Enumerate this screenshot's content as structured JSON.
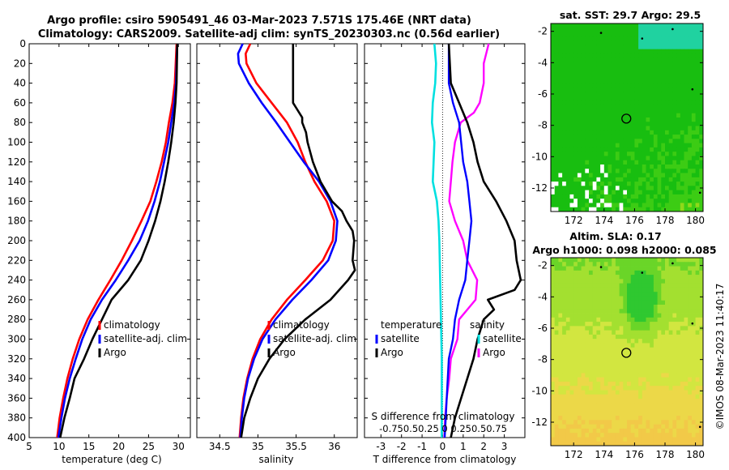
{
  "title_line1": "Argo profile: csiro 5905491_46 03-Mar-2023 7.571S 175.46E (NRT data)",
  "title_line2": "Climatology: CARS2009. Satellite-adj clim: synTS_20230303.nc (0.56d earlier)",
  "depth_ticks": [
    0,
    20,
    40,
    60,
    80,
    100,
    120,
    140,
    160,
    180,
    200,
    220,
    240,
    260,
    280,
    300,
    320,
    340,
    360,
    380,
    400
  ],
  "colors": {
    "climatology": "#ff0000",
    "satellite": "#0000ff",
    "argo": "#000000",
    "sal_satellite": "#00e0e0",
    "sal_argo": "#ff00ff"
  },
  "chart_data": [
    {
      "type": "line",
      "name": "temperature-profile",
      "xlabel": "temperature (deg C)",
      "xlim": [
        5,
        32
      ],
      "ylim": [
        400,
        0
      ],
      "x_ticks": [
        5,
        10,
        15,
        20,
        25,
        30
      ],
      "legend": [
        "climatology",
        "satellite-adj. clim",
        "Argo"
      ],
      "legend_position": "lower-middle",
      "series": [
        {
          "name": "climatology",
          "depth": [
            0,
            40,
            60,
            80,
            100,
            120,
            140,
            160,
            180,
            200,
            220,
            240,
            260,
            280,
            300,
            320,
            340,
            360,
            380,
            400
          ],
          "values": [
            29.7,
            29.4,
            29.0,
            28.4,
            27.9,
            27.2,
            26.3,
            25.3,
            23.8,
            22.2,
            20.5,
            18.6,
            16.6,
            14.8,
            13.4,
            12.3,
            11.4,
            10.7,
            10.1,
            9.7
          ]
        },
        {
          "name": "satellite-adj. clim",
          "depth": [
            0,
            40,
            60,
            80,
            100,
            120,
            140,
            160,
            180,
            200,
            220,
            240,
            260,
            280,
            300,
            320,
            340,
            360,
            380,
            400
          ],
          "values": [
            29.8,
            29.6,
            29.3,
            28.8,
            28.3,
            27.6,
            26.9,
            26.0,
            24.9,
            23.5,
            21.6,
            19.5,
            17.2,
            15.3,
            13.9,
            12.8,
            11.8,
            11.0,
            10.4,
            9.9
          ]
        },
        {
          "name": "Argo",
          "depth": [
            0,
            40,
            60,
            80,
            100,
            120,
            140,
            160,
            180,
            200,
            220,
            240,
            260,
            280,
            300,
            320,
            340,
            360,
            380,
            400
          ],
          "values": [
            29.8,
            29.7,
            29.5,
            29.2,
            28.8,
            28.3,
            27.7,
            27.0,
            26.1,
            25.0,
            23.7,
            21.6,
            18.8,
            17.2,
            15.6,
            14.2,
            12.6,
            11.8,
            10.9,
            10.2
          ]
        }
      ]
    },
    {
      "type": "line",
      "name": "salinity-profile",
      "xlabel": "salinity",
      "xlim": [
        34.2,
        36.3
      ],
      "ylim": [
        400,
        0
      ],
      "x_ticks": [
        34.5,
        35,
        35.5,
        36
      ],
      "legend": [
        "climatology",
        "satellite-adj. clim",
        "Argo"
      ],
      "legend_position": "lower-middle",
      "series": [
        {
          "name": "climatology",
          "depth": [
            0,
            10,
            20,
            40,
            60,
            80,
            100,
            120,
            140,
            160,
            180,
            200,
            220,
            240,
            260,
            280,
            300,
            320,
            340,
            360,
            380,
            400
          ],
          "values": [
            34.9,
            34.84,
            34.85,
            34.98,
            35.18,
            35.38,
            35.52,
            35.62,
            35.74,
            35.9,
            36.0,
            35.98,
            35.85,
            35.62,
            35.38,
            35.18,
            35.03,
            34.93,
            34.86,
            34.81,
            34.78,
            34.76
          ]
        },
        {
          "name": "satellite-adj. clim",
          "depth": [
            0,
            10,
            20,
            40,
            60,
            80,
            100,
            120,
            140,
            160,
            180,
            200,
            220,
            240,
            260,
            280,
            300,
            320,
            340,
            360,
            380,
            400
          ],
          "values": [
            34.8,
            34.74,
            34.75,
            34.88,
            35.05,
            35.24,
            35.42,
            35.6,
            35.8,
            35.95,
            36.04,
            36.02,
            35.92,
            35.7,
            35.45,
            35.23,
            35.06,
            34.95,
            34.87,
            34.82,
            34.79,
            34.77
          ]
        },
        {
          "name": "Argo",
          "depth": [
            0,
            40,
            60,
            65,
            75,
            80,
            90,
            100,
            120,
            140,
            160,
            170,
            180,
            190,
            200,
            220,
            230,
            240,
            260,
            280,
            300,
            320,
            340,
            360,
            380,
            400
          ],
          "values": [
            35.46,
            35.46,
            35.46,
            35.5,
            35.58,
            35.58,
            35.63,
            35.65,
            35.72,
            35.82,
            35.97,
            36.1,
            36.16,
            36.24,
            36.26,
            36.24,
            36.27,
            36.18,
            35.95,
            35.62,
            35.35,
            35.15,
            35.0,
            34.9,
            34.82,
            34.78
          ]
        }
      ]
    },
    {
      "type": "line",
      "name": "difference-profile",
      "xlabel": "T difference from climatology",
      "xlabel_top": "S difference from climatology",
      "xlim": [
        -3.8,
        4.0
      ],
      "ylim": [
        400,
        0
      ],
      "x_ticks": [
        -3,
        -2,
        -1,
        0,
        1,
        2,
        3
      ],
      "s_ticks_label": "-0.75 0.5 0.25 0 0.25 0.5 0.75",
      "s_ticks_label_display": "-0.750.50.25 0 0.250.50.75",
      "legend_temperature": [
        "temperature",
        "satellite",
        "Argo"
      ],
      "legend_salinity": [
        "salinity",
        "satellite",
        "Argo"
      ],
      "series": [
        {
          "name": "T satellite",
          "depth": [
            0,
            20,
            40,
            60,
            80,
            100,
            120,
            140,
            160,
            180,
            200,
            220,
            240,
            260,
            280,
            300,
            320,
            340,
            360,
            380,
            400
          ],
          "values": [
            0.3,
            0.3,
            0.3,
            0.5,
            0.8,
            0.9,
            1.0,
            1.2,
            1.3,
            1.4,
            1.3,
            1.2,
            1.1,
            0.8,
            0.6,
            0.5,
            0.3,
            0.25,
            0.2,
            0.15,
            0.1
          ]
        },
        {
          "name": "T Argo",
          "depth": [
            0,
            40,
            60,
            80,
            100,
            120,
            140,
            160,
            180,
            200,
            220,
            240,
            250,
            260,
            270,
            280,
            300,
            320,
            340,
            360,
            380,
            400
          ],
          "values": [
            0.3,
            0.4,
            0.8,
            1.2,
            1.5,
            1.7,
            2.0,
            2.6,
            3.1,
            3.5,
            3.6,
            3.8,
            3.5,
            2.2,
            2.5,
            2.0,
            1.7,
            1.5,
            1.2,
            0.9,
            0.6,
            0.4
          ]
        },
        {
          "name": "S satellite",
          "depth": [
            0,
            20,
            40,
            60,
            80,
            100,
            120,
            140,
            160,
            180,
            200,
            240,
            280,
            320,
            360,
            400
          ],
          "values": [
            -0.1,
            -0.08,
            -0.09,
            -0.12,
            -0.13,
            -0.1,
            -0.11,
            -0.12,
            -0.07,
            -0.05,
            -0.04,
            -0.03,
            -0.02,
            -0.01,
            -0.01,
            -0.01
          ]
        },
        {
          "name": "S Argo",
          "depth": [
            0,
            20,
            40,
            60,
            70,
            80,
            100,
            120,
            140,
            160,
            180,
            200,
            220,
            240,
            260,
            280,
            300,
            320,
            340,
            360,
            380,
            400
          ],
          "values": [
            0.56,
            0.5,
            0.5,
            0.45,
            0.38,
            0.22,
            0.15,
            0.12,
            0.1,
            0.08,
            0.15,
            0.25,
            0.3,
            0.42,
            0.4,
            0.2,
            0.18,
            0.1,
            0.08,
            0.05,
            0.03,
            0.02
          ]
        }
      ]
    },
    {
      "type": "heatmap",
      "name": "sst-map",
      "title": "sat. SST: 29.7 Argo: 29.5",
      "xlim": [
        170.5,
        180.5
      ],
      "ylim": [
        -13.5,
        -1.5
      ],
      "x_ticks": [
        172,
        174,
        176,
        178,
        180
      ],
      "y_ticks": [
        -2,
        -4,
        -6,
        -8,
        -10,
        -12
      ],
      "marker": {
        "lon": 175.46,
        "lat": -7.571
      }
    },
    {
      "type": "heatmap",
      "name": "sla-map",
      "title": "Altim. SLA: 0.17",
      "subtitle": "Argo h1000: 0.098 h2000: 0.085",
      "xlim": [
        170.5,
        180.5
      ],
      "ylim": [
        -13.5,
        -1.5
      ],
      "x_ticks": [
        172,
        174,
        176,
        178,
        180
      ],
      "y_ticks": [
        -2,
        -4,
        -6,
        -8,
        -10,
        -12
      ],
      "marker": {
        "lon": 175.46,
        "lat": -7.571
      }
    }
  ],
  "side_label": "©IMOS 08-Mar-2023 11:40:17"
}
